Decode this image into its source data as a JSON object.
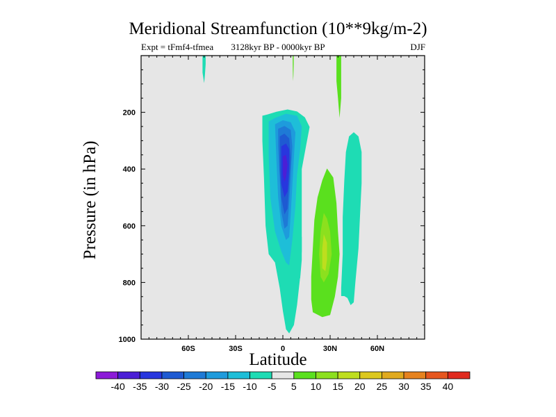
{
  "chart_data": {
    "type": "contour",
    "title": "Meridional Streamfunction (10**9kg/m-2)",
    "subtitle_left": "Expt = tFmf4-tfmea",
    "subtitle_center": "3128kyr BP - 0000kyr BP",
    "subtitle_right": "DJF",
    "xlabel": "Latitude",
    "ylabel": "Pressure (in hPa)",
    "xlim": [
      -90,
      90
    ],
    "ylim": [
      0,
      1000
    ],
    "x_ticks": [
      {
        "value": -60,
        "label": "60S"
      },
      {
        "value": -30,
        "label": "30S"
      },
      {
        "value": 0,
        "label": "0"
      },
      {
        "value": 30,
        "label": "30N"
      },
      {
        "value": 60,
        "label": "60N"
      }
    ],
    "y_ticks": [
      {
        "value": 200,
        "label": "200"
      },
      {
        "value": 400,
        "label": "400"
      },
      {
        "value": 600,
        "label": "600"
      },
      {
        "value": 800,
        "label": "800"
      },
      {
        "value": 1000,
        "label": "1000"
      }
    ],
    "background_color": "#e6e6e6",
    "contour_levels": [
      -40,
      -35,
      -30,
      -25,
      -20,
      -15,
      -10,
      -5,
      5,
      10,
      15,
      20,
      25,
      30,
      35,
      40
    ],
    "colorbar_colors": [
      "#8c1ad8",
      "#4b1ed6",
      "#2836de",
      "#1e5ad2",
      "#1e7ad6",
      "#1e9bdc",
      "#1ebed8",
      "#1edcb4",
      "#e6e6e6",
      "#5ae01e",
      "#8ce01e",
      "#bede1e",
      "#dcc81e",
      "#e0aa1e",
      "#e6821e",
      "#e6561e",
      "#e02a1e"
    ],
    "regions": [
      {
        "name": "cell-minus5-main",
        "color": "#1edcb4",
        "points": [
          [
            -13,
            212
          ],
          [
            -10,
            208
          ],
          [
            -4,
            198
          ],
          [
            3,
            190
          ],
          [
            9,
            197
          ],
          [
            14,
            218
          ],
          [
            17,
            252
          ],
          [
            15,
            310
          ],
          [
            12,
            400
          ],
          [
            12,
            560
          ],
          [
            12,
            690
          ],
          [
            11,
            780
          ],
          [
            9,
            880
          ],
          [
            7,
            950
          ],
          [
            4,
            980
          ],
          [
            2,
            965
          ],
          [
            0,
            900
          ],
          [
            -2,
            820
          ],
          [
            -5,
            730
          ],
          [
            -9,
            700
          ],
          [
            -11,
            600
          ],
          [
            -12,
            430
          ],
          [
            -13,
            300
          ]
        ]
      },
      {
        "name": "cell-minus5-strip",
        "color": "#1edcb4",
        "points": [
          [
            10,
            600
          ],
          [
            12,
            640
          ],
          [
            12,
            720
          ],
          [
            11,
            785
          ],
          [
            9,
            795
          ],
          [
            8,
            730
          ],
          [
            9,
            640
          ]
        ]
      },
      {
        "name": "cell-minus10",
        "color": "#1ebed8",
        "points": [
          [
            -9,
            232
          ],
          [
            -5,
            220
          ],
          [
            2,
            205
          ],
          [
            9,
            212
          ],
          [
            12,
            250
          ],
          [
            11,
            330
          ],
          [
            9,
            420
          ],
          [
            8,
            530
          ],
          [
            6,
            650
          ],
          [
            4,
            740
          ],
          [
            2,
            730
          ],
          [
            -1,
            690
          ],
          [
            -5,
            620
          ],
          [
            -8,
            500
          ],
          [
            -9,
            350
          ]
        ]
      },
      {
        "name": "cell-minus15",
        "color": "#1e9bdc",
        "points": [
          [
            -5,
            242
          ],
          [
            0,
            228
          ],
          [
            5,
            235
          ],
          [
            8,
            270
          ],
          [
            7,
            360
          ],
          [
            6,
            460
          ],
          [
            5,
            560
          ],
          [
            4,
            640
          ],
          [
            2,
            650
          ],
          [
            -1,
            600
          ],
          [
            -3,
            500
          ],
          [
            -4,
            380
          ]
        ]
      },
      {
        "name": "cell-minus20",
        "color": "#1e7ad6",
        "points": [
          [
            -3,
            258
          ],
          [
            1,
            248
          ],
          [
            5,
            262
          ],
          [
            6,
            320
          ],
          [
            5,
            420
          ],
          [
            4,
            520
          ],
          [
            3,
            600
          ],
          [
            1,
            610
          ],
          [
            -1,
            550
          ],
          [
            -2,
            430
          ],
          [
            -3,
            320
          ]
        ]
      },
      {
        "name": "cell-minus25",
        "color": "#1e5ad2",
        "points": [
          [
            -2,
            285
          ],
          [
            1,
            275
          ],
          [
            4,
            292
          ],
          [
            5,
            360
          ],
          [
            4,
            450
          ],
          [
            3,
            540
          ],
          [
            1,
            560
          ],
          [
            -1,
            500
          ],
          [
            -2,
            400
          ]
        ]
      },
      {
        "name": "cell-minus30",
        "color": "#2836de",
        "points": [
          [
            -1,
            320
          ],
          [
            2,
            310
          ],
          [
            4,
            330
          ],
          [
            4,
            400
          ],
          [
            3,
            480
          ],
          [
            1,
            500
          ],
          [
            -1,
            450
          ],
          [
            -1,
            380
          ]
        ]
      },
      {
        "name": "cell-minus35",
        "color": "#4b1ed6",
        "points": [
          [
            0,
            355
          ],
          [
            2,
            350
          ],
          [
            3,
            385
          ],
          [
            2,
            430
          ],
          [
            1,
            445
          ],
          [
            0,
            420
          ]
        ]
      },
      {
        "name": "cell-5-bottom",
        "color": "#5ae01e",
        "points": [
          [
            28,
            398
          ],
          [
            32,
            430
          ],
          [
            34,
            520
          ],
          [
            35,
            620
          ],
          [
            36,
            700
          ],
          [
            35,
            780
          ],
          [
            33,
            850
          ],
          [
            30,
            915
          ],
          [
            25,
            922
          ],
          [
            19,
            905
          ],
          [
            18,
            860
          ],
          [
            18,
            780
          ],
          [
            19,
            680
          ],
          [
            20,
            580
          ],
          [
            22,
            500
          ],
          [
            25,
            440
          ]
        ]
      },
      {
        "name": "cell-10-bottom",
        "color": "#8ce01e",
        "points": [
          [
            26,
            555
          ],
          [
            28,
            575
          ],
          [
            30,
            620
          ],
          [
            31,
            700
          ],
          [
            29,
            770
          ],
          [
            26,
            800
          ],
          [
            24,
            780
          ],
          [
            23,
            700
          ],
          [
            24,
            620
          ]
        ]
      },
      {
        "name": "cell-15-bottom",
        "color": "#bede1e",
        "points": [
          [
            26,
            630
          ],
          [
            28,
            660
          ],
          [
            28,
            720
          ],
          [
            27,
            760
          ],
          [
            25,
            750
          ],
          [
            25,
            680
          ]
        ]
      },
      {
        "name": "cell-minus5-right",
        "color": "#1edcb4",
        "points": [
          [
            45,
            270
          ],
          [
            48,
            285
          ],
          [
            50,
            340
          ],
          [
            50,
            450
          ],
          [
            49,
            560
          ],
          [
            48,
            680
          ],
          [
            46,
            800
          ],
          [
            45,
            870
          ],
          [
            43,
            880
          ],
          [
            41,
            855
          ],
          [
            39,
            848
          ],
          [
            37,
            848
          ],
          [
            37,
            820
          ],
          [
            38,
            700
          ],
          [
            38,
            570
          ],
          [
            39,
            440
          ],
          [
            40,
            340
          ],
          [
            42,
            285
          ]
        ]
      },
      {
        "name": "cell-minus5-top-left",
        "color": "#1edcb4",
        "points": [
          [
            -51,
            0
          ],
          [
            -49,
            0
          ],
          [
            -49,
            30
          ],
          [
            -49.5,
            70
          ],
          [
            -50,
            97
          ],
          [
            -51,
            60
          ]
        ]
      },
      {
        "name": "cell-5-top-right",
        "color": "#5ae01e",
        "points": [
          [
            34,
            0
          ],
          [
            37,
            0
          ],
          [
            37,
            50
          ],
          [
            37,
            150
          ],
          [
            36,
            220
          ],
          [
            35,
            150
          ],
          [
            34,
            90
          ],
          [
            34,
            40
          ]
        ]
      },
      {
        "name": "cell-5-top-center",
        "color": "#5ae01e",
        "points": [
          [
            6.2,
            0
          ],
          [
            6.9,
            0
          ],
          [
            6.9,
            30
          ],
          [
            6.7,
            70
          ],
          [
            6.5,
            90
          ],
          [
            6.3,
            50
          ]
        ]
      }
    ]
  }
}
